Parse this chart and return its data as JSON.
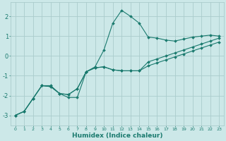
{
  "x": [
    0,
    1,
    2,
    3,
    4,
    5,
    6,
    7,
    8,
    9,
    10,
    11,
    12,
    13,
    14,
    15,
    16,
    17,
    18,
    19,
    20,
    21,
    22,
    23
  ],
  "line1": [
    -3.0,
    -2.8,
    -2.15,
    -1.5,
    -1.5,
    -1.9,
    -2.1,
    -2.1,
    -0.8,
    -0.55,
    0.3,
    1.65,
    2.3,
    2.0,
    1.65,
    0.95,
    0.9,
    0.8,
    0.75,
    0.85,
    0.95,
    1.0,
    1.05,
    1.0
  ],
  "line2": [
    -3.0,
    -2.8,
    -2.15,
    -1.5,
    -1.55,
    -1.9,
    -1.95,
    -1.65,
    -0.8,
    -0.6,
    -0.55,
    -0.7,
    -0.75,
    -0.75,
    -0.75,
    -0.3,
    -0.15,
    0.0,
    0.15,
    0.3,
    0.45,
    0.6,
    0.75,
    0.9
  ],
  "line3": [
    -3.0,
    -2.8,
    -2.15,
    -1.5,
    -1.55,
    -1.9,
    -1.95,
    -1.65,
    -0.8,
    -0.6,
    -0.55,
    -0.7,
    -0.75,
    -0.75,
    -0.75,
    -0.5,
    -0.35,
    -0.2,
    -0.05,
    0.1,
    0.25,
    0.4,
    0.55,
    0.7
  ],
  "color": "#1a7a6e",
  "bg_color": "#cce8e8",
  "grid_color": "#aacccc",
  "xlabel": "Humidex (Indice chaleur)",
  "ylim": [
    -3.5,
    2.7
  ],
  "xlim": [
    -0.5,
    23.5
  ],
  "yticks": [
    -3,
    -2,
    -1,
    0,
    1,
    2
  ],
  "xticks": [
    0,
    1,
    2,
    3,
    4,
    5,
    6,
    7,
    8,
    9,
    10,
    11,
    12,
    13,
    14,
    15,
    16,
    17,
    18,
    19,
    20,
    21,
    22,
    23
  ],
  "xtick_labels": [
    "0",
    "1",
    "2",
    "3",
    "4",
    "5",
    "6",
    "7",
    "8",
    "9",
    "10",
    "11",
    "12",
    "13",
    "14",
    "15",
    "16",
    "17",
    "18",
    "19",
    "20",
    "21",
    "22",
    "23"
  ]
}
